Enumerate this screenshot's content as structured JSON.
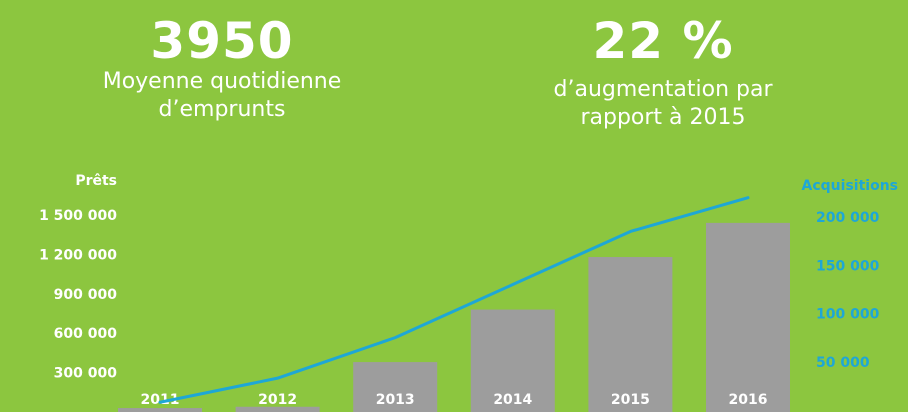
{
  "stats": [
    {
      "value": "3950",
      "caption_line1": "Moyenne quotidienne",
      "caption_line2": "d’emprunts"
    },
    {
      "value": "22 %",
      "caption_line1": "d’augmentation par",
      "caption_line2": "rapport à 2015"
    }
  ],
  "colors": {
    "background": "#8cc63f",
    "bars": "#9d9d9d",
    "line": "#1ea7d6",
    "text": "#ffffff"
  },
  "chart_data": {
    "type": "bar",
    "categories": [
      "2011",
      "2012",
      "2013",
      "2014",
      "2015",
      "2016"
    ],
    "series": [
      {
        "name": "Prêts",
        "type": "bar",
        "axis": "left",
        "values": [
          30000,
          40000,
          380000,
          780000,
          1180000,
          1440000
        ]
      },
      {
        "name": "Acquisitions",
        "type": "line",
        "axis": "right",
        "values": [
          8000,
          33000,
          75000,
          130000,
          185000,
          220000
        ]
      }
    ],
    "y_left": {
      "label": "Prêts",
      "ticks": [
        "300 000",
        "600 000",
        "900 000",
        "1 200 000",
        "1 500 000"
      ],
      "tick_values": [
        300000,
        600000,
        900000,
        1200000,
        1500000
      ],
      "range": [
        0,
        1500000
      ]
    },
    "y_right": {
      "label": "Acquisitions",
      "ticks": [
        "50 000",
        "100 000",
        "150 000",
        "200 000"
      ],
      "tick_values": [
        50000,
        100000,
        150000,
        200000
      ],
      "range": [
        0,
        200000
      ]
    },
    "grid": false
  }
}
